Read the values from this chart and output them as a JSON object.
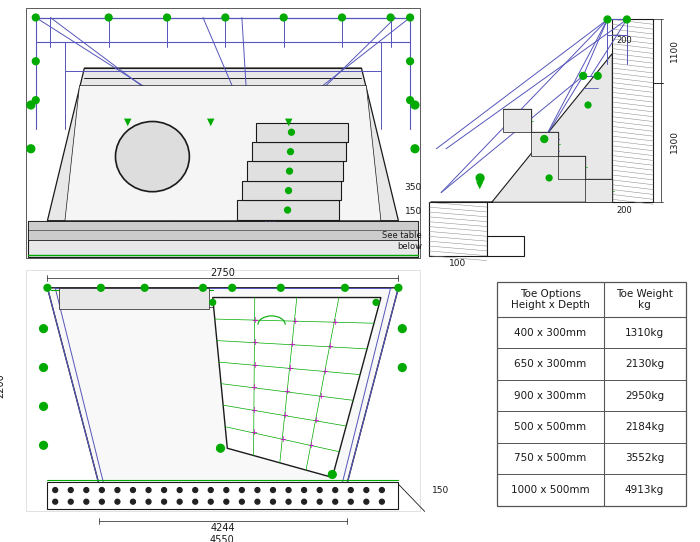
{
  "bg_color": "#ffffff",
  "line_color": "#1a1a1a",
  "blue_color": "#5555bb",
  "green_color": "#00aa00",
  "magenta_color": "#cc00cc",
  "gray_light": "#e8e8e8",
  "gray_mid": "#d0d0d0",
  "hatch_color": "#888888",
  "table": {
    "rows": [
      [
        "400 x 300mm",
        "1310kg"
      ],
      [
        "650 x 300mm",
        "2130kg"
      ],
      [
        "900 x 300mm",
        "2950kg"
      ],
      [
        "500 x 500mm",
        "2184kg"
      ],
      [
        "750 x 500mm",
        "3552kg"
      ],
      [
        "1000 x 500mm",
        "4913kg"
      ]
    ]
  }
}
